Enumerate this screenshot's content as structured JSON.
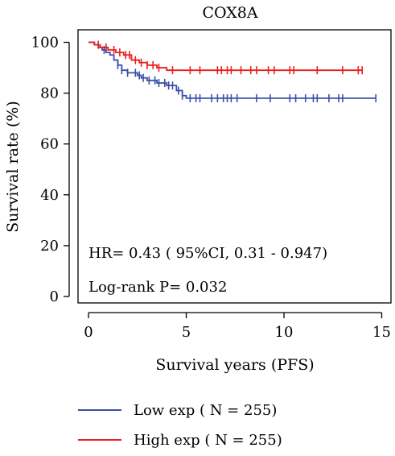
{
  "chart_data": {
    "type": "line",
    "subtype": "kaplan-meier",
    "title": "COX8A",
    "xlabel": "Survival years (PFS)",
    "ylabel": "Survival rate (%)",
    "xlim": [
      0,
      15
    ],
    "ylim": [
      0,
      100
    ],
    "xticks": [
      0,
      5,
      10,
      15
    ],
    "yticks": [
      0,
      20,
      40,
      60,
      80,
      100
    ],
    "grid": false,
    "legend_position": "bottom",
    "annotations": [
      "HR= 0.43 ( 95%CI, 0.31 - 0.947)",
      "Log-rank P= 0.032"
    ],
    "series": [
      {
        "name": "Low exp ( N = 255)",
        "color": "#3a4fa8",
        "x": [
          0,
          0.3,
          0.5,
          0.7,
          0.9,
          1.1,
          1.3,
          1.5,
          1.7,
          2.0,
          2.5,
          2.7,
          3.0,
          3.5,
          4.0,
          4.5,
          4.8,
          5.0,
          14.7
        ],
        "y": [
          100,
          99,
          98,
          97,
          96,
          95,
          93,
          91,
          89,
          88,
          87,
          86,
          85,
          84,
          83,
          81,
          79,
          78,
          78
        ],
        "censor_x": [
          0.8,
          1.5,
          1.7,
          2.0,
          2.4,
          2.6,
          2.8,
          3.1,
          3.4,
          3.6,
          3.9,
          4.1,
          4.3,
          4.6,
          4.8,
          5.2,
          5.5,
          5.7,
          6.3,
          6.6,
          6.9,
          7.1,
          7.3,
          7.6,
          8.6,
          9.3,
          10.3,
          10.6,
          11.1,
          11.5,
          11.7,
          12.3,
          12.8,
          13.0,
          14.7
        ]
      },
      {
        "name": "High exp ( N = 255)",
        "color": "#e8201c",
        "x": [
          0,
          0.3,
          0.6,
          1.0,
          1.4,
          1.8,
          2.2,
          2.6,
          3.0,
          3.5,
          4.0,
          14.0
        ],
        "y": [
          100,
          99,
          98,
          97,
          96,
          95,
          93,
          92,
          91,
          90,
          89,
          89
        ],
        "censor_x": [
          0.5,
          0.9,
          1.3,
          1.6,
          1.9,
          2.1,
          2.4,
          2.7,
          3.0,
          3.3,
          3.6,
          4.3,
          5.2,
          5.7,
          6.6,
          6.8,
          7.1,
          7.3,
          7.8,
          8.3,
          8.6,
          9.2,
          9.5,
          10.3,
          10.5,
          11.7,
          13.0,
          13.8,
          14.0
        ]
      }
    ]
  }
}
